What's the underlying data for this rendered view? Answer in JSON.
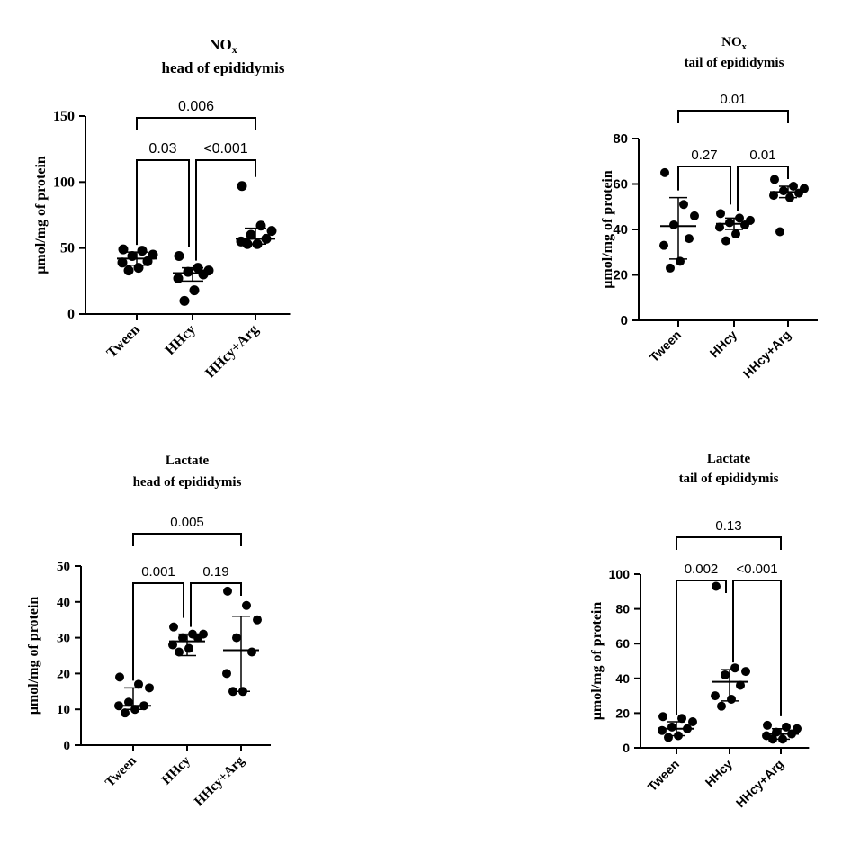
{
  "chart_data": [
    {
      "type": "scatter",
      "title": "NOx",
      "title_main": "NO",
      "title_sub": "x",
      "subtitle": "head of epididymis",
      "ylabel": "µmol/mg of protein",
      "ylim": [
        0,
        150
      ],
      "yticks": [
        "0",
        "50",
        "100",
        "150"
      ],
      "categories": [
        "Tween",
        "HHcy",
        "HHcy+Arg"
      ],
      "series": [
        {
          "values": [
            49,
            48,
            45,
            44,
            40,
            39,
            35,
            33
          ],
          "center": 42,
          "err_low": 37,
          "err_high": 47
        },
        {
          "values": [
            44,
            35,
            33,
            32,
            30,
            27,
            18,
            10
          ],
          "center": 31,
          "err_low": 25,
          "err_high": 35
        },
        {
          "values": [
            97,
            67,
            63,
            60,
            57,
            55,
            53,
            53
          ],
          "center": 57,
          "err_low": 53,
          "err_high": 65
        }
      ],
      "comparisons": [
        {
          "from": 0,
          "to": 2,
          "label": "0.006",
          "level": 2
        },
        {
          "from": 0,
          "to": 1,
          "label": "0.03",
          "level": 1
        },
        {
          "from": 1,
          "to": 2,
          "label": "<0.001",
          "level": 1
        }
      ],
      "tick_font": "serif-bold"
    },
    {
      "type": "scatter",
      "title": "NOx",
      "title_main": "NO",
      "title_sub": "x",
      "subtitle": "tail of epididymis",
      "ylabel": "µmol/mg of protein",
      "ylim": [
        0,
        80
      ],
      "yticks": [
        "0",
        "20",
        "40",
        "60",
        "80"
      ],
      "categories": [
        "Tween",
        "HHcy",
        "HHcy+Arg"
      ],
      "series": [
        {
          "values": [
            65,
            51,
            46,
            42,
            36,
            33,
            26,
            23
          ],
          "center": 41.5,
          "err_low": 27,
          "err_high": 54
        },
        {
          "values": [
            47,
            45,
            44,
            43,
            42,
            41,
            38,
            35
          ],
          "center": 42.5,
          "err_low": 40,
          "err_high": 45
        },
        {
          "values": [
            62,
            59,
            58,
            57,
            56,
            55,
            54,
            39
          ],
          "center": 56.5,
          "err_low": 54,
          "err_high": 59
        }
      ],
      "comparisons": [
        {
          "from": 0,
          "to": 2,
          "label": "0.01",
          "level": 2
        },
        {
          "from": 0,
          "to": 1,
          "label": "0.27",
          "level": 1
        },
        {
          "from": 1,
          "to": 2,
          "label": "0.01",
          "level": 1
        }
      ],
      "tick_font": "sans-bold"
    },
    {
      "type": "scatter",
      "title": "Lactate",
      "title_main": "Lactate",
      "title_sub": "",
      "subtitle": "head of epididymis",
      "ylabel": "µmol/mg of protein",
      "ylim": [
        0,
        50
      ],
      "yticks": [
        "0",
        "10",
        "20",
        "30",
        "40",
        "50"
      ],
      "categories": [
        "Tween",
        "HHcy",
        "HHcy+Arg"
      ],
      "series": [
        {
          "values": [
            19,
            17,
            16,
            12,
            11,
            11,
            10,
            9
          ],
          "center": 11,
          "err_low": 10,
          "err_high": 16
        },
        {
          "values": [
            33,
            31,
            31,
            30,
            30,
            28,
            27,
            26
          ],
          "center": 29,
          "err_low": 25,
          "err_high": 31
        },
        {
          "values": [
            43,
            39,
            35,
            30,
            26,
            20,
            15,
            15
          ],
          "center": 26.5,
          "err_low": 15,
          "err_high": 36
        }
      ],
      "comparisons": [
        {
          "from": 0,
          "to": 2,
          "label": "0.005",
          "level": 2
        },
        {
          "from": 0,
          "to": 1,
          "label": "0.001",
          "level": 1
        },
        {
          "from": 1,
          "to": 2,
          "label": "0.19",
          "level": 1
        }
      ],
      "tick_font": "serif-bold"
    },
    {
      "type": "scatter",
      "title": "Lactate",
      "title_main": "Lactate",
      "title_sub": "",
      "subtitle": "tail of epididymis",
      "ylabel": "µmol/mg of protein",
      "ylim": [
        0,
        100
      ],
      "yticks": [
        "0",
        "20",
        "40",
        "60",
        "80",
        "100"
      ],
      "categories": [
        "Tween",
        "HHcy",
        "HHcy+Arg"
      ],
      "series": [
        {
          "values": [
            18,
            17,
            15,
            12,
            11,
            10,
            7,
            6
          ],
          "center": 11,
          "err_low": 7,
          "err_high": 15
        },
        {
          "values": [
            93,
            46,
            44,
            42,
            36,
            30,
            28,
            24
          ],
          "center": 38,
          "err_low": 27,
          "err_high": 45
        },
        {
          "values": [
            13,
            12,
            11,
            9,
            8,
            7,
            5,
            5
          ],
          "center": 8,
          "err_low": 5,
          "err_high": 11
        }
      ],
      "comparisons": [
        {
          "from": 0,
          "to": 2,
          "label": "0.13",
          "level": 2
        },
        {
          "from": 0,
          "to": 1,
          "label": "0.002",
          "level": 1
        },
        {
          "from": 1,
          "to": 2,
          "label": "<0.001",
          "level": 1
        }
      ],
      "tick_font": "sans-bold"
    }
  ]
}
